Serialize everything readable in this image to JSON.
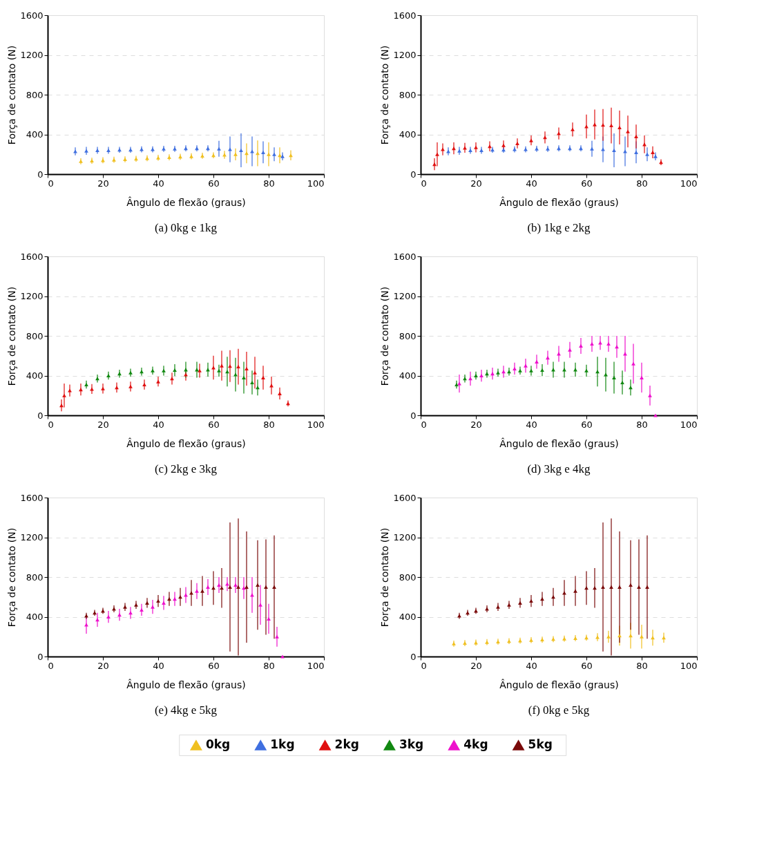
{
  "chart_data": [
    {
      "type": "scatter",
      "title": "(a) 0kg e 1kg",
      "xlabel": "Ângulo de flexão (graus)",
      "ylabel": "Força de contato (N)",
      "xlim": [
        0,
        100
      ],
      "xticks": [
        0,
        20,
        40,
        60,
        80,
        100
      ],
      "ylim": [
        0,
        1600
      ],
      "yticks": [
        0,
        400,
        800,
        1200,
        1600
      ],
      "grid": "y",
      "marker": "triangle",
      "legend": "bottom",
      "series": [
        {
          "name": "0kg",
          "color": "#f0c020",
          "x": [
            12,
            16,
            20,
            24,
            28,
            32,
            36,
            40,
            44,
            48,
            52,
            56,
            60,
            64,
            68,
            72,
            76,
            80,
            84,
            88
          ],
          "values": [
            130,
            135,
            140,
            145,
            150,
            155,
            160,
            165,
            170,
            175,
            180,
            185,
            190,
            195,
            200,
            210,
            210,
            200,
            190,
            190
          ],
          "errors": [
            30,
            30,
            30,
            30,
            30,
            30,
            30,
            30,
            30,
            30,
            30,
            30,
            30,
            40,
            60,
            100,
            130,
            120,
            80,
            50
          ]
        },
        {
          "name": "1kg",
          "color": "#3f6fe0",
          "x": [
            10,
            14,
            18,
            22,
            26,
            30,
            34,
            38,
            42,
            46,
            50,
            54,
            58,
            62,
            66,
            70,
            74,
            78,
            82,
            85
          ],
          "values": [
            230,
            235,
            240,
            240,
            245,
            245,
            250,
            250,
            255,
            255,
            260,
            260,
            260,
            255,
            250,
            240,
            230,
            220,
            200,
            180
          ],
          "errors": [
            40,
            40,
            35,
            35,
            30,
            30,
            30,
            30,
            30,
            30,
            30,
            30,
            30,
            80,
            130,
            170,
            150,
            110,
            70,
            40
          ]
        }
      ]
    },
    {
      "type": "scatter",
      "title": "(b) 1kg e 2kg",
      "xlabel": "Ângulo de flexão (graus)",
      "ylabel": "Força de contato (N)",
      "xlim": [
        0,
        100
      ],
      "xticks": [
        0,
        20,
        40,
        60,
        80,
        100
      ],
      "ylim": [
        0,
        1600
      ],
      "yticks": [
        0,
        400,
        800,
        1200,
        1600
      ],
      "grid": "y",
      "marker": "triangle",
      "legend": "bottom",
      "series": [
        {
          "name": "1kg",
          "color": "#3f6fe0",
          "x": [
            10,
            14,
            18,
            22,
            26,
            30,
            34,
            38,
            42,
            46,
            50,
            54,
            58,
            62,
            66,
            70,
            74,
            78,
            82,
            85
          ],
          "values": [
            230,
            235,
            240,
            240,
            245,
            245,
            250,
            250,
            255,
            255,
            260,
            260,
            260,
            255,
            250,
            240,
            230,
            220,
            200,
            180
          ],
          "errors": [
            40,
            40,
            35,
            35,
            30,
            30,
            30,
            30,
            30,
            30,
            30,
            30,
            30,
            80,
            130,
            170,
            150,
            110,
            70,
            40
          ]
        },
        {
          "name": "2kg",
          "color": "#e01010",
          "x": [
            5,
            6,
            8,
            12,
            16,
            20,
            25,
            30,
            35,
            40,
            45,
            50,
            55,
            60,
            63,
            66,
            69,
            72,
            75,
            78,
            81,
            84,
            87
          ],
          "values": [
            100,
            200,
            250,
            260,
            265,
            270,
            280,
            290,
            310,
            340,
            370,
            410,
            450,
            480,
            500,
            495,
            490,
            470,
            430,
            380,
            300,
            220,
            120
          ],
          "errors": [
            60,
            120,
            60,
            60,
            50,
            50,
            50,
            50,
            50,
            50,
            60,
            60,
            70,
            120,
            150,
            160,
            180,
            170,
            160,
            120,
            90,
            60,
            30
          ]
        }
      ]
    },
    {
      "type": "scatter",
      "title": "(c) 2kg e 3kg",
      "xlabel": "Ângulo de flexão (graus)",
      "ylabel": "Força de contato (N)",
      "xlim": [
        0,
        100
      ],
      "xticks": [
        0,
        20,
        40,
        60,
        80,
        100
      ],
      "ylim": [
        0,
        1600
      ],
      "yticks": [
        0,
        400,
        800,
        1200,
        1600
      ],
      "grid": "y",
      "marker": "triangle",
      "legend": "bottom",
      "series": [
        {
          "name": "2kg",
          "color": "#e01010",
          "x": [
            5,
            6,
            8,
            12,
            16,
            20,
            25,
            30,
            35,
            40,
            45,
            50,
            55,
            60,
            63,
            66,
            69,
            72,
            75,
            78,
            81,
            84,
            87
          ],
          "values": [
            100,
            200,
            250,
            260,
            265,
            270,
            280,
            290,
            310,
            340,
            370,
            410,
            450,
            480,
            500,
            495,
            490,
            470,
            430,
            380,
            300,
            220,
            120
          ],
          "errors": [
            60,
            120,
            60,
            60,
            50,
            50,
            50,
            50,
            50,
            50,
            60,
            60,
            70,
            120,
            150,
            160,
            180,
            170,
            160,
            120,
            90,
            60,
            30
          ]
        },
        {
          "name": "3kg",
          "color": "#118811",
          "x": [
            14,
            18,
            22,
            26,
            30,
            34,
            38,
            42,
            46,
            50,
            54,
            58,
            62,
            65,
            68,
            71,
            74,
            76
          ],
          "values": [
            310,
            370,
            400,
            420,
            430,
            440,
            450,
            450,
            455,
            460,
            460,
            460,
            450,
            440,
            410,
            380,
            330,
            280
          ],
          "errors": [
            40,
            40,
            40,
            40,
            40,
            40,
            40,
            50,
            60,
            80,
            80,
            70,
            60,
            150,
            170,
            160,
            120,
            80
          ]
        }
      ]
    },
    {
      "type": "scatter",
      "title": "(d) 3kg e 4kg",
      "xlabel": "Ângulo de flexão (graus)",
      "ylabel": "Força de contato (N)",
      "xlim": [
        0,
        100
      ],
      "xticks": [
        0,
        20,
        40,
        60,
        80,
        100
      ],
      "ylim": [
        0,
        1600
      ],
      "yticks": [
        0,
        400,
        800,
        1200,
        1600
      ],
      "grid": "y",
      "marker": "triangle",
      "legend": "bottom",
      "series": [
        {
          "name": "3kg",
          "color": "#118811",
          "x": [
            13,
            16,
            20,
            24,
            28,
            32,
            36,
            40,
            44,
            48,
            52,
            56,
            60,
            64,
            67,
            70,
            73,
            76
          ],
          "values": [
            310,
            370,
            400,
            420,
            430,
            440,
            450,
            450,
            455,
            460,
            460,
            460,
            450,
            440,
            410,
            380,
            330,
            280
          ],
          "errors": [
            40,
            40,
            40,
            40,
            40,
            40,
            40,
            50,
            60,
            80,
            80,
            70,
            60,
            150,
            170,
            160,
            120,
            80
          ]
        },
        {
          "name": "4kg",
          "color": "#ee11cc",
          "x": [
            14,
            18,
            22,
            26,
            30,
            34,
            38,
            42,
            46,
            50,
            54,
            58,
            62,
            65,
            68,
            71,
            74,
            77,
            80,
            83,
            85
          ],
          "values": [
            320,
            370,
            400,
            420,
            440,
            470,
            500,
            540,
            580,
            620,
            660,
            700,
            720,
            730,
            720,
            690,
            620,
            520,
            380,
            200,
            0
          ],
          "errors": [
            90,
            70,
            60,
            60,
            60,
            60,
            70,
            70,
            70,
            80,
            80,
            80,
            80,
            70,
            80,
            110,
            180,
            200,
            150,
            100,
            null
          ]
        }
      ]
    },
    {
      "type": "scatter",
      "title": "(e) 4kg e 5kg",
      "xlabel": "Ângulo de flexão (graus)",
      "ylabel": "Força de contato (N)",
      "xlim": [
        0,
        100
      ],
      "xticks": [
        0,
        20,
        40,
        60,
        80,
        100
      ],
      "ylim": [
        0,
        1600
      ],
      "yticks": [
        0,
        400,
        800,
        1200,
        1600
      ],
      "grid": "y",
      "marker": "triangle",
      "legend": "bottom",
      "series": [
        {
          "name": "4kg",
          "color": "#ee11cc",
          "x": [
            14,
            18,
            22,
            26,
            30,
            34,
            38,
            42,
            46,
            50,
            54,
            58,
            62,
            65,
            68,
            71,
            74,
            77,
            80,
            83,
            85
          ],
          "values": [
            320,
            370,
            400,
            420,
            440,
            470,
            500,
            540,
            580,
            620,
            660,
            700,
            720,
            730,
            720,
            690,
            620,
            520,
            380,
            200,
            0
          ],
          "errors": [
            90,
            70,
            60,
            60,
            60,
            60,
            70,
            70,
            70,
            80,
            80,
            80,
            80,
            70,
            80,
            110,
            180,
            200,
            150,
            100,
            null
          ]
        },
        {
          "name": "5kg",
          "color": "#7a0a0a",
          "x": [
            14,
            17,
            20,
            24,
            28,
            32,
            36,
            40,
            44,
            48,
            52,
            56,
            60,
            63,
            66,
            69,
            72,
            76,
            79,
            82
          ],
          "values": [
            410,
            440,
            460,
            480,
            500,
            520,
            540,
            560,
            580,
            600,
            640,
            660,
            690,
            690,
            700,
            700,
            700,
            720,
            700,
            700
          ],
          "errors": [
            30,
            30,
            30,
            35,
            40,
            40,
            50,
            60,
            70,
            90,
            130,
            150,
            170,
            200,
            650,
            690,
            560,
            450,
            480,
            520
          ]
        }
      ]
    },
    {
      "type": "scatter",
      "title": "(f) 0kg e 5kg",
      "xlabel": "Ângulo de flexão (graus)",
      "ylabel": "Força de contato (N)",
      "xlim": [
        0,
        100
      ],
      "xticks": [
        0,
        20,
        40,
        60,
        80,
        100
      ],
      "ylim": [
        0,
        1600
      ],
      "yticks": [
        0,
        400,
        800,
        1200,
        1600
      ],
      "grid": "y",
      "marker": "triangle",
      "legend": "bottom",
      "series": [
        {
          "name": "0kg",
          "color": "#f0c020",
          "x": [
            12,
            16,
            20,
            24,
            28,
            32,
            36,
            40,
            44,
            48,
            52,
            56,
            60,
            64,
            68,
            72,
            76,
            80,
            84,
            88
          ],
          "values": [
            130,
            135,
            140,
            145,
            150,
            155,
            160,
            165,
            170,
            175,
            180,
            185,
            190,
            195,
            200,
            210,
            210,
            200,
            190,
            190
          ],
          "errors": [
            30,
            30,
            30,
            30,
            30,
            30,
            30,
            30,
            30,
            30,
            30,
            30,
            30,
            40,
            60,
            100,
            130,
            120,
            80,
            50
          ]
        },
        {
          "name": "5kg",
          "color": "#7a0a0a",
          "x": [
            14,
            17,
            20,
            24,
            28,
            32,
            36,
            40,
            44,
            48,
            52,
            56,
            60,
            63,
            66,
            69,
            72,
            76,
            79,
            82
          ],
          "values": [
            410,
            440,
            460,
            480,
            500,
            520,
            540,
            560,
            580,
            600,
            640,
            660,
            690,
            690,
            700,
            700,
            700,
            720,
            700,
            700
          ],
          "errors": [
            30,
            30,
            30,
            35,
            40,
            40,
            50,
            60,
            70,
            90,
            130,
            150,
            170,
            200,
            650,
            690,
            560,
            450,
            480,
            520
          ]
        }
      ]
    }
  ]
}
